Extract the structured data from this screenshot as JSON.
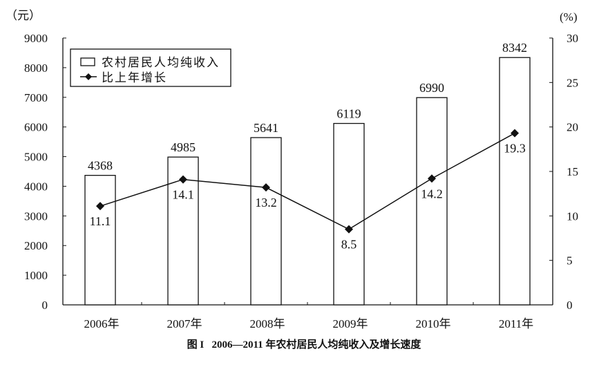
{
  "chart_data": {
    "type": "bar+line",
    "title": "图 I   2006—2011 年农村居民人均纯收入及增长速度",
    "left_axis_unit": "（元）",
    "right_axis_unit": "(%)",
    "categories": [
      "2006年",
      "2007年",
      "2008年",
      "2009年",
      "2010年",
      "2011年"
    ],
    "left_ylim": [
      0,
      9000
    ],
    "left_ticks": [
      "0",
      "1000",
      "2000",
      "3000",
      "4000",
      "5000",
      "6000",
      "7000",
      "8000",
      "9000"
    ],
    "right_ylim": [
      0,
      30
    ],
    "right_ticks": [
      "0",
      "5",
      "10",
      "15",
      "20",
      "25",
      "30"
    ],
    "grid": false,
    "legend_placement": "top-left",
    "series": [
      {
        "name": "农村居民人均纯收入",
        "type": "bar",
        "axis": "left",
        "values": [
          4368,
          4985,
          5641,
          6119,
          6990,
          8342
        ],
        "labels": [
          "4368",
          "4985",
          "5641",
          "6119",
          "6990",
          "8342"
        ]
      },
      {
        "name": "比上年增长",
        "type": "line",
        "axis": "right",
        "marker": "diamond",
        "values": [
          11.1,
          14.1,
          13.2,
          8.5,
          14.2,
          19.3
        ],
        "labels": [
          "11.1",
          "14.1",
          "13.2",
          "8.5",
          "14.2",
          "19.3"
        ]
      }
    ],
    "colors": {
      "bar_fill": "#ffffff",
      "stroke": "#111111"
    }
  }
}
